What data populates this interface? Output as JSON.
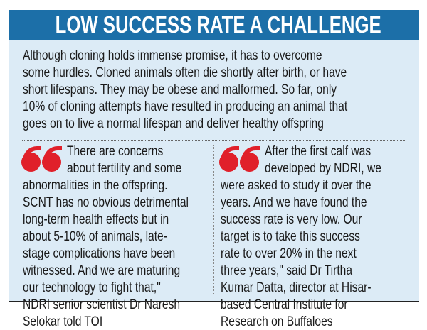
{
  "header": {
    "title": "LOW SUCCESS RATE A CHALLENGE"
  },
  "intro": {
    "lines": [
      "Although cloning holds immense promise, it has to overcome",
      "some hurdles. Cloned animals often die shortly after birth, or have",
      "short lifespans. They may be obese and malformed. So far, only",
      "10% of cloning attempts have resulted in producing an animal that",
      "goes on to live a normal lifespan and deliver healthy offspring"
    ]
  },
  "quotes": [
    {
      "icon": "quote-mark-icon",
      "lines": [
        "There are concerns",
        "about fertility and some",
        "abnormalities in the offspring.",
        "SCNT has no obvious detrimental",
        "long-term health effects but in",
        "about 5-10% of animals, late-",
        "stage complications have been",
        "witnessed. And we are maturing",
        "our technology to fight that,\"",
        "NDRI senior scientist Dr Naresh",
        "Selokar told TOI"
      ]
    },
    {
      "icon": "quote-mark-icon",
      "lines": [
        "After the first calf was",
        "developed by NDRI, we",
        "were asked to study it over the",
        "years. And we have found the",
        "success rate is very low. Our",
        "target is to take this success",
        "rate to over 20% in the next",
        "three years,\" said Dr Tirtha",
        "Kumar Datta, director at Hisar-",
        "based Central Institute for",
        "Research on Buffaloes"
      ]
    }
  ],
  "colors": {
    "header": "#1c6fa8",
    "background": "#dcebf6",
    "quote": "#e0202a"
  }
}
